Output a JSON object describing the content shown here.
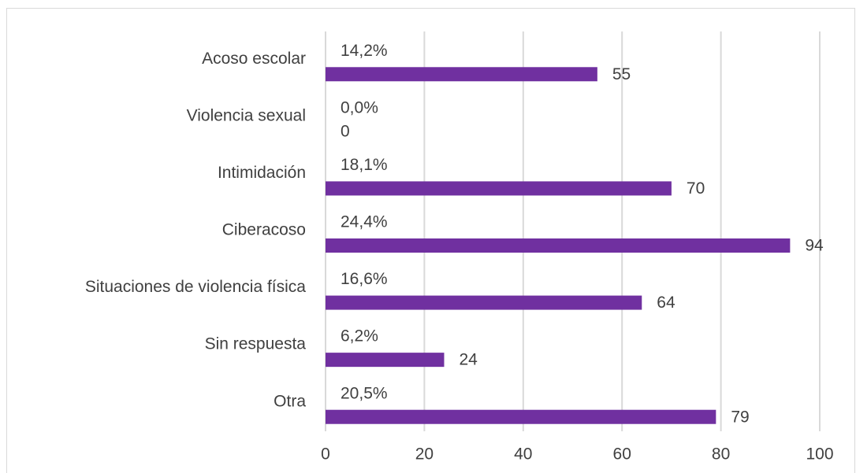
{
  "chart_data": {
    "type": "hbar",
    "categories": [
      "Acoso escolar",
      "Violencia sexual",
      "Intimidación",
      "Ciberacoso",
      "Situaciones de violencia física",
      "Sin respuesta",
      "Otra"
    ],
    "values": [
      55,
      0,
      70,
      94,
      64,
      24,
      79
    ],
    "annotations": [
      "14,2%",
      "0,0%",
      "18,1%",
      "24,4%",
      "16,6%",
      "6,2%",
      "20,5%"
    ],
    "color": "#7030a0",
    "xlim": [
      0,
      100
    ],
    "xticks": [
      0,
      20,
      40,
      60,
      80,
      100
    ],
    "grid": true
  }
}
